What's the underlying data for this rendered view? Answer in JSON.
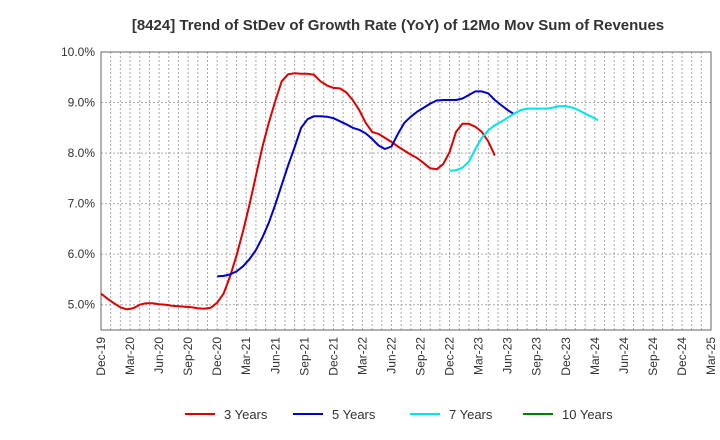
{
  "chart_data": {
    "type": "line",
    "title": "[8424]  Trend of StDev of Growth Rate (YoY) of 12Mo Mov Sum of Revenues",
    "xlabel": "",
    "ylabel": "",
    "ylim": [
      4.5,
      10.0
    ],
    "y_ticks": [
      5.0,
      6.0,
      7.0,
      8.0,
      9.0,
      10.0
    ],
    "y_tick_labels": [
      "5.0%",
      "6.0%",
      "7.0%",
      "8.0%",
      "9.0%",
      "10.0%"
    ],
    "x_tick_labels": [
      "Dec-19",
      "Mar-20",
      "Jun-20",
      "Sep-20",
      "Dec-20",
      "Mar-21",
      "Jun-21",
      "Sep-21",
      "Dec-21",
      "Mar-22",
      "Jun-22",
      "Sep-22",
      "Dec-22",
      "Mar-23",
      "Jun-23",
      "Sep-23",
      "Dec-23",
      "Mar-24",
      "Jun-24",
      "Sep-24",
      "Dec-24",
      "Mar-25"
    ],
    "grid": true,
    "legend_position": "bottom",
    "series": [
      {
        "name": "3 Years",
        "color": "#dd0000",
        "start": "Dec-19",
        "values": [
          5.22,
          5.12,
          5.03,
          4.95,
          4.91,
          4.93,
          5.0,
          5.03,
          5.03,
          5.01,
          5.0,
          4.98,
          4.97,
          4.96,
          4.95,
          4.93,
          4.92,
          4.94,
          5.04,
          5.22,
          5.56,
          5.98,
          6.45,
          6.98,
          7.55,
          8.12,
          8.6,
          9.03,
          9.42,
          9.56,
          9.58,
          9.57,
          9.57,
          9.55,
          9.42,
          9.34,
          9.29,
          9.28,
          9.2,
          9.05,
          8.85,
          8.6,
          8.42,
          8.38,
          8.3,
          8.22,
          8.13,
          8.05,
          7.97,
          7.9,
          7.8,
          7.7,
          7.68,
          7.78,
          8.02,
          8.42,
          8.58,
          8.58,
          8.52,
          8.42,
          8.23,
          7.95
        ]
      },
      {
        "name": "5 Years",
        "color": "#0000cc",
        "start": "Dec-20",
        "values": [
          5.56,
          5.57,
          5.6,
          5.66,
          5.76,
          5.9,
          6.08,
          6.33,
          6.62,
          6.98,
          7.37,
          7.76,
          8.12,
          8.5,
          8.67,
          8.73,
          8.73,
          8.72,
          8.69,
          8.63,
          8.57,
          8.5,
          8.46,
          8.39,
          8.28,
          8.15,
          8.08,
          8.13,
          8.38,
          8.6,
          8.72,
          8.82,
          8.9,
          8.98,
          9.04,
          9.05,
          9.05,
          9.05,
          9.08,
          9.15,
          9.22,
          9.22,
          9.18,
          9.05,
          8.95,
          8.85,
          8.77
        ]
      },
      {
        "name": "7 Years",
        "color": "#00e5e5",
        "start": "Dec-22",
        "values": [
          7.65,
          7.66,
          7.71,
          7.83,
          8.08,
          8.3,
          8.45,
          8.55,
          8.62,
          8.7,
          8.78,
          8.85,
          8.88,
          8.88,
          8.88,
          8.88,
          8.9,
          8.93,
          8.93,
          8.9,
          8.85,
          8.78,
          8.72,
          8.65
        ]
      },
      {
        "name": "10 Years",
        "color": "#008000",
        "start": "Dec-24",
        "values": []
      }
    ]
  }
}
